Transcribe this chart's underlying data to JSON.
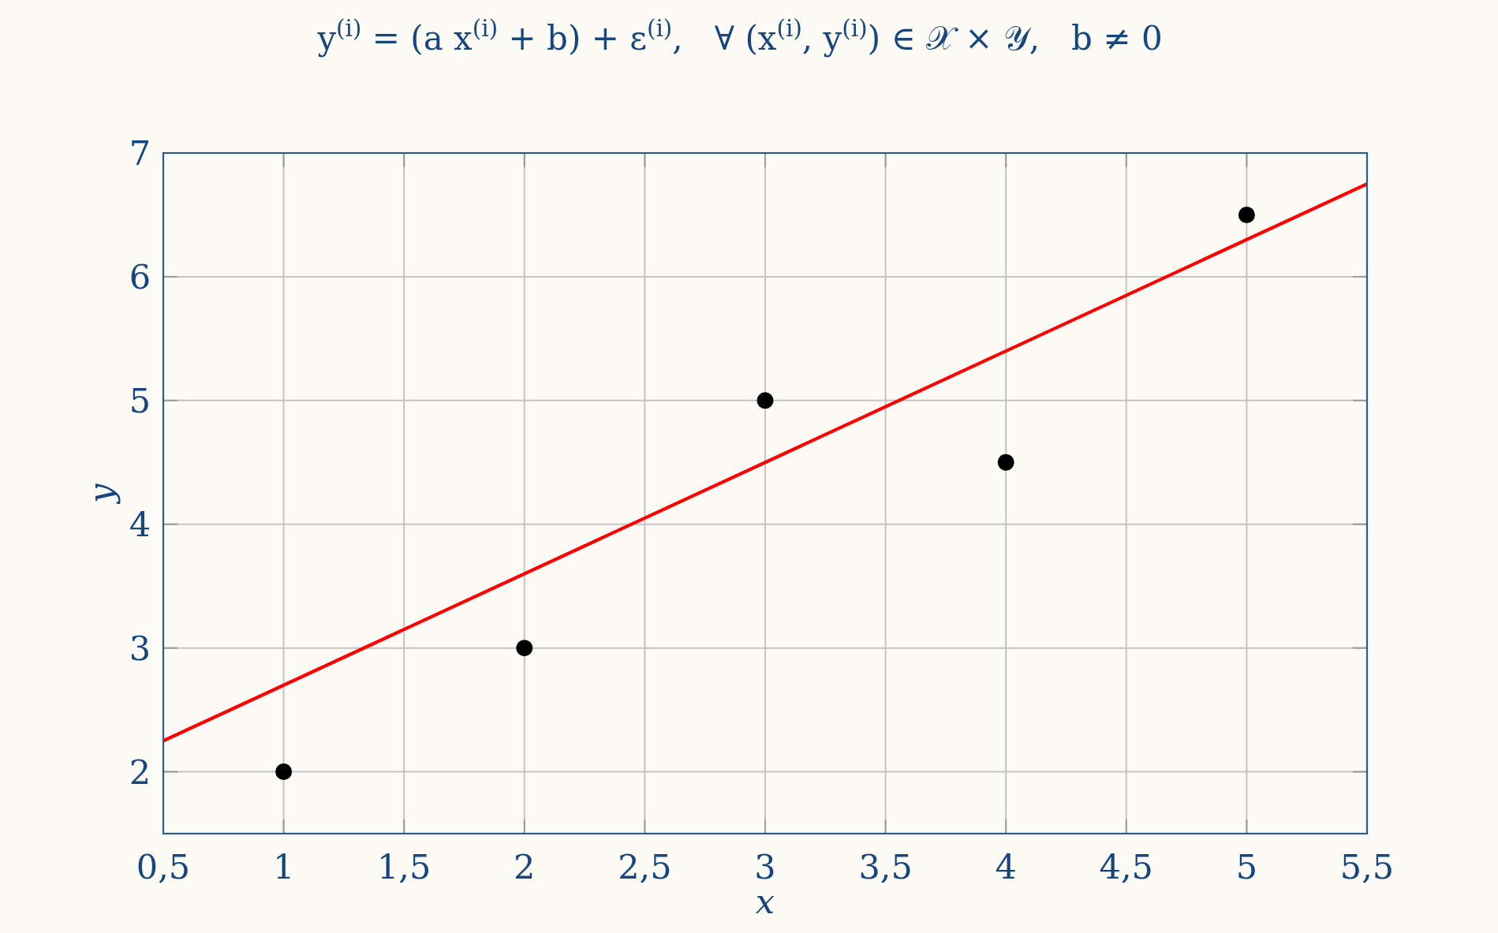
{
  "chart_data": {
    "type": "scatter",
    "title": "y$^{(i)}$ = (a x$^{(i)}$ + b) + ε$^{(i)}$,   ∀ (x$^{(i)}$, y$^{(i)}$) ∈ 𝒳 × 𝒴,   b ≠ 0",
    "xlabel": "x",
    "ylabel": "y",
    "series": [
      {
        "x": [
          1,
          2,
          3,
          4,
          5
        ],
        "values": [
          2,
          3,
          5,
          4.5,
          6.5
        ],
        "color": "#000000",
        "marker": "circle"
      },
      {
        "type": "line",
        "x": [
          0.5,
          5.5
        ],
        "values": [
          2.25,
          6.75
        ],
        "color": "#ff0000",
        "line_style": "solid"
      }
    ],
    "xlim": [
      0.5,
      5.5
    ],
    "ylim": [
      1.5,
      7
    ],
    "xticks": [
      {
        "value": 0.5,
        "label": "0,5"
      },
      1,
      {
        "value": 1.5,
        "label": "1,5"
      },
      2,
      {
        "value": 2.5,
        "label": "2,5"
      },
      3,
      {
        "value": 3.5,
        "label": "3,5"
      },
      4,
      {
        "value": 4.5,
        "label": "4,5"
      },
      5,
      {
        "value": 5.5,
        "label": "5,5"
      }
    ],
    "yticks": [
      2,
      3,
      4,
      5,
      6,
      7
    ],
    "grid": true
  }
}
